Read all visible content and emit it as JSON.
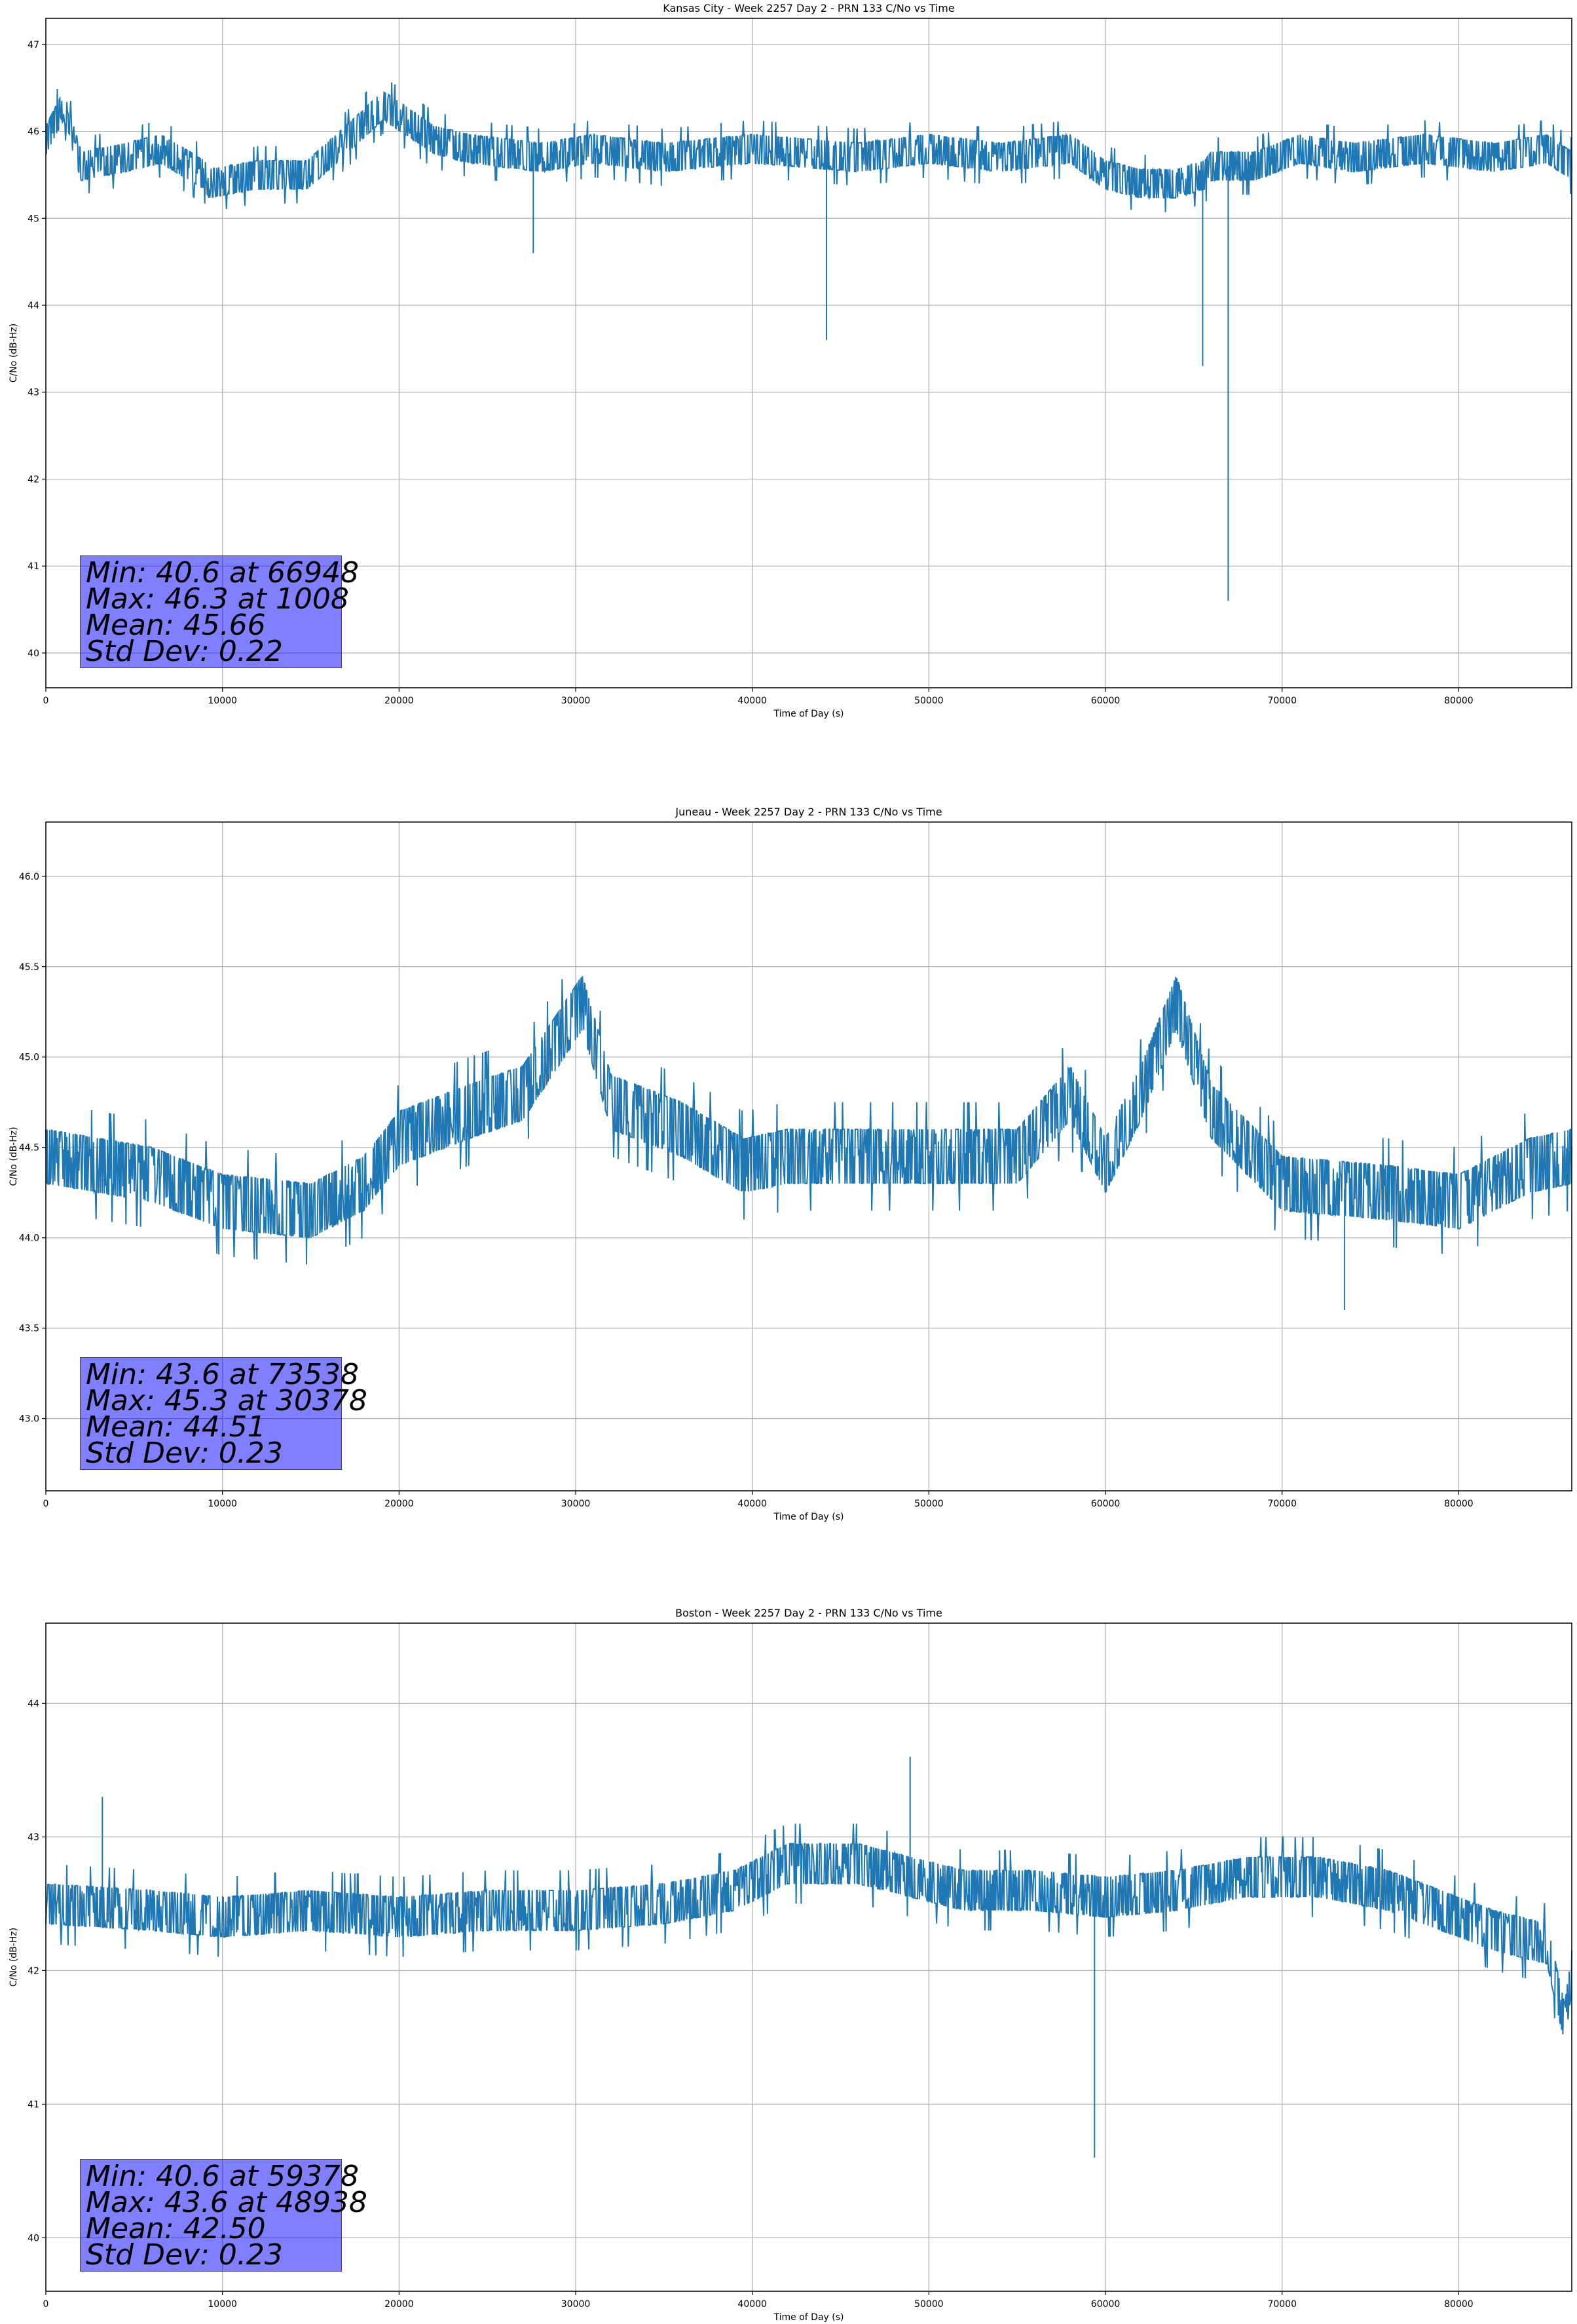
{
  "chart_data": [
    {
      "type": "line",
      "title": "Kansas City - Week 2257 Day 2 - PRN 133 C/No vs Time",
      "xlabel": "Time of Day (s)",
      "ylabel": "C/No (dB-Hz)",
      "xlim": [
        0,
        86400
      ],
      "ylim": [
        39.6,
        47.3
      ],
      "xticks": [
        0,
        10000,
        20000,
        30000,
        40000,
        50000,
        60000,
        70000,
        80000
      ],
      "yticks": [
        40,
        41,
        42,
        43,
        44,
        45,
        46,
        47
      ],
      "ytick_decimals": 0,
      "grid": true,
      "line_color": "#1f77b4",
      "series": [
        {
          "name": "",
          "x": [
            0,
            1008,
            2000,
            4500,
            6500,
            9000,
            9200,
            12000,
            14800,
            17000,
            19100,
            22000,
            24000,
            27600,
            28000,
            31000,
            35000,
            40000,
            44200,
            46000,
            50000,
            54000,
            58000,
            60000,
            62000,
            64000,
            65500,
            65600,
            66000,
            66948,
            67000,
            68500,
            71000,
            74000,
            78000,
            82000,
            85000,
            86400
          ],
          "y": [
            45.9,
            46.3,
            45.6,
            45.7,
            45.8,
            45.5,
            45.4,
            45.5,
            45.5,
            45.9,
            46.3,
            45.9,
            45.8,
            44.6,
            45.7,
            45.8,
            45.7,
            45.8,
            43.6,
            45.7,
            45.8,
            45.7,
            45.8,
            45.5,
            45.4,
            45.4,
            43.3,
            45.5,
            45.6,
            40.6,
            45.6,
            45.6,
            45.8,
            45.7,
            45.8,
            45.7,
            45.8,
            45.6
          ]
        }
      ],
      "stats": [
        "Min: 40.6 at 66948",
        "Max: 46.3 at 1008",
        "Mean: 45.66",
        "Std Dev: 0.22"
      ]
    },
    {
      "type": "line",
      "title": "Juneau - Week 2257 Day 2 - PRN 133 C/No vs Time",
      "xlabel": "Time of Day (s)",
      "ylabel": "C/No (dB-Hz)",
      "xlim": [
        0,
        86400
      ],
      "ylim": [
        42.6,
        46.3
      ],
      "xticks": [
        0,
        10000,
        20000,
        30000,
        40000,
        50000,
        60000,
        70000,
        80000
      ],
      "yticks": [
        43.0,
        43.5,
        44.0,
        44.5,
        45.0,
        45.5,
        46.0
      ],
      "ytick_decimals": 1,
      "grid": true,
      "line_color": "#1f77b4",
      "series": [
        {
          "name": "",
          "x": [
            0,
            3000,
            6000,
            10000,
            15000,
            18000,
            20000,
            24000,
            27000,
            30378,
            32000,
            36000,
            39500,
            42000,
            48000,
            55000,
            58000,
            60000,
            62000,
            64000,
            66000,
            70000,
            73538,
            76000,
            80000,
            84000,
            86400
          ],
          "y": [
            44.45,
            44.4,
            44.35,
            44.2,
            44.15,
            44.3,
            44.55,
            44.7,
            44.8,
            45.3,
            44.75,
            44.6,
            44.4,
            44.45,
            44.45,
            44.45,
            44.8,
            44.4,
            44.8,
            45.3,
            44.7,
            44.3,
            43.6,
            44.25,
            44.2,
            44.4,
            44.45
          ]
        }
      ],
      "stats": [
        "Min: 43.6 at 73538",
        "Max: 45.3 at 30378",
        "Mean: 44.51",
        "Std Dev: 0.23"
      ]
    },
    {
      "type": "line",
      "title": "Boston - Week 2257 Day 2 - PRN 133 C/No vs Time",
      "xlabel": "Time of Day (s)",
      "ylabel": "C/No (dB-Hz)",
      "xlim": [
        0,
        86400
      ],
      "ylim": [
        39.6,
        44.6
      ],
      "xticks": [
        0,
        10000,
        20000,
        30000,
        40000,
        50000,
        60000,
        70000,
        80000
      ],
      "yticks": [
        40,
        41,
        42,
        43,
        44
      ],
      "ytick_decimals": 0,
      "grid": true,
      "line_color": "#1f77b4",
      "series": [
        {
          "name": "",
          "x": [
            0,
            3200,
            6000,
            10000,
            15000,
            20000,
            25000,
            30000,
            35000,
            39000,
            42000,
            46000,
            48938,
            52000,
            56000,
            59378,
            60000,
            64000,
            68000,
            72000,
            76000,
            79000,
            82000,
            85000,
            86000,
            86400
          ],
          "y": [
            42.5,
            43.3,
            42.45,
            42.4,
            42.45,
            42.4,
            42.45,
            42.45,
            42.5,
            42.6,
            42.8,
            42.8,
            43.6,
            42.6,
            42.6,
            40.6,
            42.55,
            42.6,
            42.7,
            42.7,
            42.6,
            42.45,
            42.3,
            42.2,
            41.6,
            42.0
          ]
        }
      ],
      "stats": [
        "Min: 40.6 at 59378",
        "Max: 43.6 at 48938",
        "Mean: 42.50",
        "Std Dev: 0.23"
      ]
    }
  ]
}
